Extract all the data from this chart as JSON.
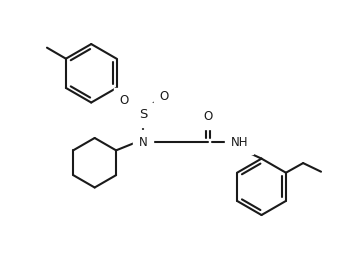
{
  "bg_color": "#ffffff",
  "line_color": "#1a1a1a",
  "line_width": 1.5,
  "font_size": 8.5,
  "figsize": [
    3.51,
    2.67
  ],
  "dpi": 100,
  "xlim": [
    0,
    10
  ],
  "ylim": [
    0,
    7.6
  ]
}
